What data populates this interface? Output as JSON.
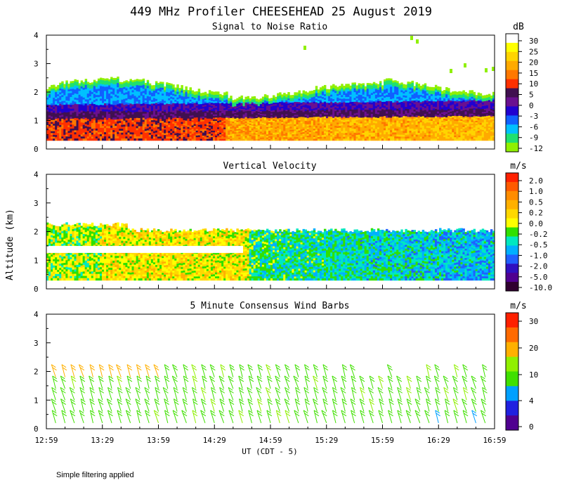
{
  "figure": {
    "title": "449 MHz Profiler CHEESEHEAD 25 August 2019",
    "ylabel": "Altitude (km)",
    "xlabel": "UT  (CDT - 5)",
    "footnote": "Simple filtering applied"
  },
  "chart_data": [
    {
      "type": "heatmap",
      "title": "Signal to Noise Ratio",
      "units": "dB",
      "x_ticks": [
        "12:59",
        "13:29",
        "13:59",
        "14:29",
        "14:59",
        "15:29",
        "15:59",
        "16:29",
        "16:59"
      ],
      "x_range_hours": [
        12.983,
        16.983
      ],
      "ylim": [
        0,
        4
      ],
      "y_ticks": [
        "0",
        "1",
        "2",
        "3",
        "4"
      ],
      "colorbar_labels": [
        "30",
        "25",
        "20",
        "15",
        "10",
        "5",
        "0",
        "-3",
        "-6",
        "-9",
        "-12"
      ],
      "colorbar_colors": [
        "#ffffff",
        "#ffff00",
        "#ffd400",
        "#ffaa00",
        "#ff7800",
        "#ff3000",
        "#401050",
        "#6a1090",
        "#2000d0",
        "#1060ff",
        "#00c0ff",
        "#20e070",
        "#90f000"
      ],
      "data_top_km": 2.3,
      "data_bottom_km": 0.3
    },
    {
      "type": "heatmap",
      "title": "Vertical Velocity",
      "units": "m/s",
      "x_ticks": [
        "12:59",
        "13:29",
        "13:59",
        "14:29",
        "14:59",
        "15:29",
        "15:59",
        "16:29",
        "16:59"
      ],
      "ylim": [
        0,
        4
      ],
      "y_ticks": [
        "0",
        "1",
        "2",
        "3",
        "4"
      ],
      "colorbar_labels": [
        "2.0",
        "1.0",
        "0.5",
        "0.2",
        "0.0",
        "-0.2",
        "-0.5",
        "-1.0",
        "-2.0",
        "-5.0",
        "-10.0"
      ],
      "colorbar_colors": [
        "#ff2000",
        "#ff5a00",
        "#ff8c00",
        "#ffb000",
        "#ffd800",
        "#ffff00",
        "#30e000",
        "#00e8c0",
        "#00b0ff",
        "#2060ff",
        "#3010c0",
        "#500090",
        "#300030"
      ],
      "data_top_km": 2.2,
      "data_bottom_km": 0.3
    },
    {
      "type": "scatter",
      "title": "5 Minute Consensus Wind Barbs",
      "units": "m/s",
      "x_ticks": [
        "12:59",
        "13:29",
        "13:59",
        "14:29",
        "14:59",
        "15:29",
        "15:59",
        "16:29",
        "16:59"
      ],
      "ylim": [
        0,
        4
      ],
      "y_ticks": [
        "0",
        "1",
        "2",
        "3",
        "4"
      ],
      "colorbar_labels": [
        "30",
        "20",
        "10",
        "4",
        "0"
      ],
      "colorbar_colors": [
        "#ff2000",
        "#ff6a00",
        "#ffb000",
        "#90f000",
        "#40e000",
        "#00a0ff",
        "#2020e0",
        "#500090"
      ],
      "barb_interval_min": 5,
      "levels_km": [
        0.2,
        0.6,
        1.0,
        1.4,
        1.8
      ]
    }
  ]
}
